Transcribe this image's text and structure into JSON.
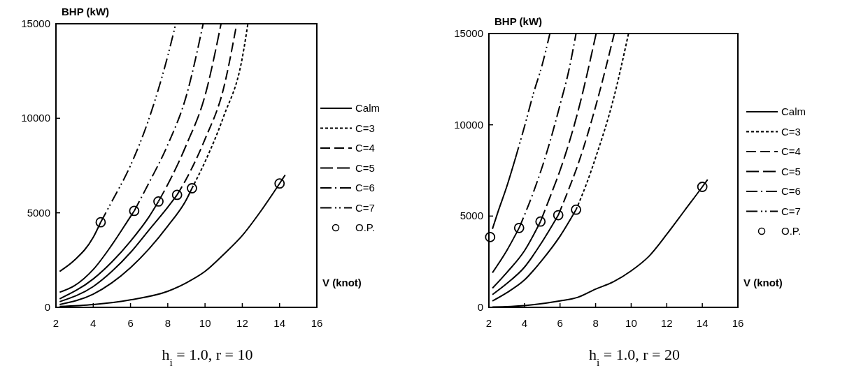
{
  "chart_data": [
    {
      "type": "line",
      "title": "h$_{i}$ = 1.0, r = 10",
      "xlabel": "V (knot)",
      "ylabel": "BHP (kW)",
      "xlim": [
        2,
        16
      ],
      "ylim": [
        0,
        15000
      ],
      "xticks": [
        2,
        4,
        6,
        8,
        10,
        12,
        14,
        16
      ],
      "yticks": [
        0,
        5000,
        10000,
        15000
      ],
      "legend": "right",
      "series": [
        {
          "name": "Calm",
          "color": "#000000",
          "line_style": "solid",
          "marker": "none",
          "x": [
            2.2,
            4,
            6,
            8,
            9,
            10,
            11,
            12,
            13,
            14,
            14.3
          ],
          "values": [
            50,
            150,
            400,
            850,
            1300,
            1900,
            2800,
            3800,
            5100,
            6550,
            7000
          ]
        },
        {
          "name": "C=3",
          "color": "#000000",
          "line_style": "dotted",
          "marker": "none",
          "x": [
            9.3,
            10,
            11,
            12,
            12.3
          ],
          "values": [
            6300,
            7700,
            10100,
            13200,
            15000
          ]
        },
        {
          "name": "C=4",
          "color": "#000000",
          "line_style": "dashed",
          "marker": "none",
          "x": [
            8.5,
            9,
            10,
            11,
            11.7
          ],
          "values": [
            5950,
            6800,
            8900,
            11600,
            15000
          ]
        },
        {
          "name": "C=5",
          "color": "#000000",
          "line_style": "dashed",
          "marker": "none",
          "x": [
            7.5,
            8,
            9,
            10,
            10.86
          ],
          "values": [
            5600,
            6500,
            8600,
            11200,
            15000
          ]
        },
        {
          "name": "C=6",
          "color": "#000000",
          "line_style": "dashed",
          "marker": "none",
          "x": [
            6.2,
            7,
            8,
            9,
            9.9
          ],
          "values": [
            5100,
            6600,
            8600,
            11200,
            15000
          ]
        },
        {
          "name": "C=7",
          "color": "#000000",
          "line_style": "dashed",
          "marker": "none",
          "x": [
            4.4,
            5,
            6,
            7,
            8,
            8.43
          ],
          "values": [
            4500,
            5600,
            7500,
            10000,
            13300,
            15000
          ]
        },
        {
          "name": "O.P.",
          "type": "scatter",
          "color": "#000000",
          "marker": "circle",
          "x": [
            4.4,
            6.2,
            7.5,
            8.5,
            9.3,
            14
          ],
          "values": [
            4500,
            5100,
            5600,
            5950,
            6300,
            6550
          ]
        },
        {
          "color": "#000000",
          "line_style": "solid",
          "marker": "none",
          "x": [
            2.2,
            4,
            5,
            6,
            7,
            8,
            9,
            9.3
          ],
          "values": [
            150,
            700,
            1300,
            2100,
            3100,
            4300,
            5700,
            6300
          ]
        },
        {
          "color": "#000000",
          "line_style": "solid",
          "marker": "none",
          "x": [
            2.2,
            4,
            5,
            6,
            7,
            8,
            8.5
          ],
          "values": [
            300,
            1100,
            1900,
            2900,
            4100,
            5300,
            5950
          ]
        },
        {
          "color": "#000000",
          "line_style": "solid",
          "marker": "none",
          "x": [
            2.2,
            4,
            5,
            6,
            7,
            7.5
          ],
          "values": [
            450,
            1500,
            2400,
            3500,
            4800,
            5600
          ]
        },
        {
          "color": "#000000",
          "line_style": "solid",
          "marker": "none",
          "x": [
            2.2,
            3,
            4,
            5,
            6,
            6.2
          ],
          "values": [
            800,
            1150,
            2000,
            3300,
            4800,
            5100
          ]
        },
        {
          "color": "#000000",
          "line_style": "solid",
          "marker": "none",
          "x": [
            2.2,
            3,
            4,
            4.4
          ],
          "values": [
            1900,
            2500,
            3700,
            4500
          ]
        }
      ]
    },
    {
      "type": "line",
      "title": "h$_{i}$ = 1.0, r = 20",
      "xlabel": "V (knot)",
      "ylabel": "BHP (kW)",
      "xlim": [
        2,
        16
      ],
      "ylim": [
        0,
        15000
      ],
      "xticks": [
        2,
        4,
        6,
        8,
        10,
        12,
        14,
        16
      ],
      "yticks": [
        0,
        5000,
        10000,
        15000
      ],
      "legend": "right",
      "series": [
        {
          "name": "Calm",
          "color": "#000000",
          "line_style": "solid",
          "marker": "none",
          "x": [
            2.2,
            4,
            6,
            7,
            8,
            9,
            10,
            11,
            12,
            13,
            14,
            14.3
          ],
          "values": [
            20,
            100,
            350,
            550,
            1000,
            1400,
            2000,
            2800,
            4000,
            5300,
            6600,
            7000
          ]
        },
        {
          "name": "C=3",
          "color": "#000000",
          "line_style": "dotted",
          "marker": "none",
          "x": [
            6.9,
            7.5,
            8,
            9,
            9.85
          ],
          "values": [
            5350,
            6800,
            8200,
            11400,
            15000
          ]
        },
        {
          "name": "C=4",
          "color": "#000000",
          "line_style": "dashed",
          "marker": "none",
          "x": [
            5.9,
            6.5,
            7,
            8,
            9.05
          ],
          "values": [
            5050,
            6500,
            7800,
            11000,
            15000
          ]
        },
        {
          "name": "C=5",
          "color": "#000000",
          "line_style": "dashed",
          "marker": "none",
          "x": [
            4.9,
            5.5,
            6,
            7,
            8.03
          ],
          "values": [
            4700,
            6200,
            7500,
            10700,
            15000
          ]
        },
        {
          "name": "C=6",
          "color": "#000000",
          "line_style": "dashed",
          "marker": "none",
          "x": [
            3.7,
            4.5,
            5,
            5.5,
            6,
            6.5,
            6.9
          ],
          "values": [
            4350,
            6300,
            7700,
            9300,
            11100,
            13000,
            15000
          ]
        },
        {
          "name": "C=7",
          "color": "#000000",
          "line_style": "dashed",
          "marker": "none",
          "x": [
            3.5,
            4,
            4.5,
            5,
            5.43
          ],
          "values": [
            8200,
            9900,
            11700,
            13300,
            15000
          ]
        },
        {
          "name": "O.P.",
          "type": "scatter",
          "color": "#000000",
          "marker": "circle",
          "x": [
            2.07,
            3.7,
            4.9,
            5.9,
            6.9,
            14
          ],
          "values": [
            3850,
            4350,
            4700,
            5050,
            5350,
            6600
          ]
        },
        {
          "color": "#000000",
          "line_style": "solid",
          "marker": "none",
          "x": [
            2.2,
            3,
            4,
            5,
            6,
            6.9
          ],
          "values": [
            350,
            800,
            1500,
            2600,
            3900,
            5350
          ]
        },
        {
          "color": "#000000",
          "line_style": "solid",
          "marker": "none",
          "x": [
            2.2,
            3,
            4,
            5,
            5.9
          ],
          "values": [
            700,
            1300,
            2200,
            3600,
            5050
          ]
        },
        {
          "color": "#000000",
          "line_style": "solid",
          "marker": "none",
          "x": [
            2.2,
            3,
            4,
            4.9
          ],
          "values": [
            1050,
            1900,
            3100,
            4700
          ]
        },
        {
          "color": "#000000",
          "line_style": "solid",
          "marker": "none",
          "x": [
            2.2,
            3,
            3.7
          ],
          "values": [
            1900,
            3100,
            4350
          ]
        },
        {
          "color": "#000000",
          "line_style": "solid",
          "marker": "none",
          "x": [
            2.2,
            2.5,
            3,
            3.5
          ],
          "values": [
            4300,
            5200,
            6600,
            8200
          ]
        }
      ]
    }
  ]
}
